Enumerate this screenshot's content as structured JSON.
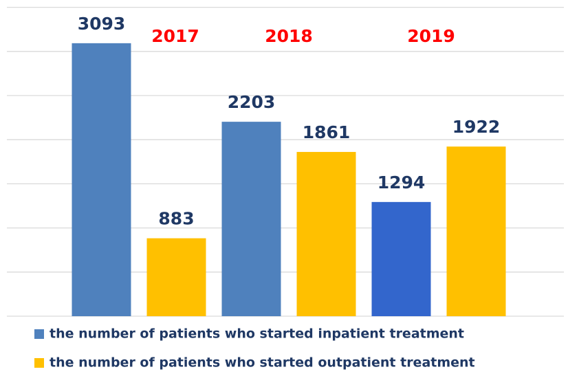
{
  "chart_data": {
    "type": "bar",
    "categories": [
      "2017",
      "2018",
      "2019"
    ],
    "series": [
      {
        "name": "the number of patients who started inpatient treatment",
        "color": "#4f81bd",
        "colors": [
          "#4f81bd",
          "#4f81bd",
          "#3366cc"
        ],
        "values": [
          3093,
          2203,
          1294
        ]
      },
      {
        "name": "the number of patients who started outpatient treatment",
        "color": "#ffc000",
        "values": [
          883,
          1861,
          1922
        ]
      }
    ],
    "ylim": [
      0,
      3500
    ],
    "yticks": [
      0,
      500,
      1000,
      1500,
      2000,
      2500,
      3000,
      3500
    ],
    "grid": true,
    "legend": "bottom"
  }
}
